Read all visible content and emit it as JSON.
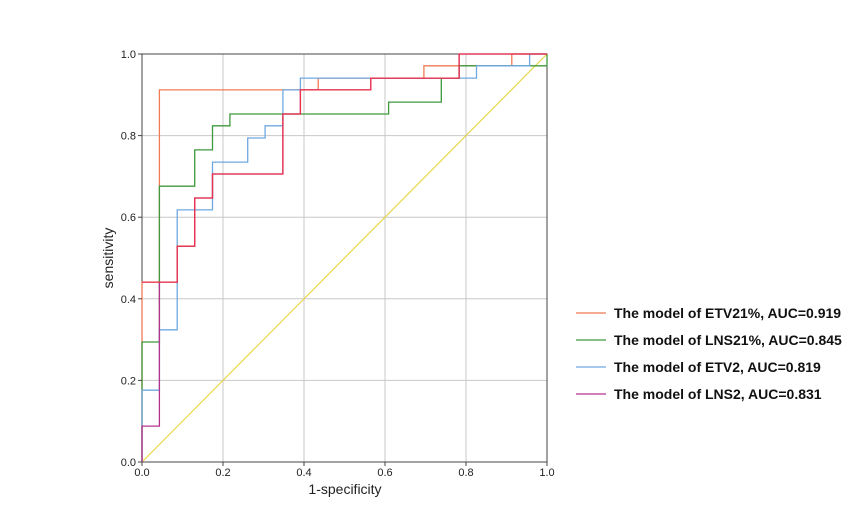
{
  "chart_data": {
    "type": "line",
    "xlabel": "1-specificity",
    "ylabel": "sensitivity",
    "xlim": [
      0,
      1
    ],
    "ylim": [
      0,
      1
    ],
    "x_ticks": [
      "0.0",
      "0.2",
      "0.4",
      "0.6",
      "0.8",
      "1.0"
    ],
    "y_ticks": [
      "0.0",
      "0.2",
      "0.4",
      "0.6",
      "0.8",
      "1.0"
    ],
    "grid": true,
    "legend_position": "right",
    "reference_line": {
      "x": [
        0,
        1
      ],
      "y": [
        0,
        1
      ],
      "color": "#e8d84a"
    },
    "series": [
      {
        "name": "The model of ETV21%, AUC=0.919",
        "color": "#f07b52",
        "x": [
          0,
          0,
          0.043,
          0.043,
          0.043,
          0.435,
          0.435,
          0.696,
          0.696,
          0.913,
          0.913,
          1
        ],
        "y": [
          0,
          0.441,
          0.441,
          0.676,
          0.912,
          0.912,
          0.941,
          0.941,
          0.971,
          0.971,
          1,
          1
        ]
      },
      {
        "name": "The model of LNS21%, AUC=0.845",
        "color": "#3e9a3e",
        "x": [
          0,
          0,
          0.043,
          0.043,
          0.13,
          0.13,
          0.174,
          0.174,
          0.217,
          0.217,
          0.348,
          0.348,
          0.609,
          0.609,
          0.739,
          0.739,
          0.783,
          0.783,
          1,
          1
        ],
        "y": [
          0,
          0.294,
          0.294,
          0.676,
          0.676,
          0.765,
          0.765,
          0.824,
          0.824,
          0.853,
          0.853,
          0.853,
          0.853,
          0.882,
          0.882,
          0.941,
          0.941,
          0.971,
          0.971,
          1
        ]
      },
      {
        "name": "The model of ETV2, AUC=0.819",
        "color": "#6fa8e0",
        "x": [
          0,
          0,
          0.043,
          0.043,
          0.087,
          0.087,
          0.174,
          0.174,
          0.261,
          0.261,
          0.304,
          0.304,
          0.348,
          0.348,
          0.391,
          0.391,
          0.435,
          0.435,
          0.826,
          0.826,
          0.957,
          0.957,
          1
        ],
        "y": [
          0,
          0.176,
          0.176,
          0.324,
          0.324,
          0.618,
          0.618,
          0.735,
          0.735,
          0.794,
          0.794,
          0.824,
          0.824,
          0.912,
          0.912,
          0.941,
          0.941,
          0.941,
          0.941,
          0.971,
          0.971,
          1,
          1
        ]
      },
      {
        "name": "The model of LNS2, AUC=0.831",
        "color": "#b5338f",
        "x": [
          0,
          0,
          0.043,
          0.043,
          0.087,
          0.087,
          0.13,
          0.13,
          0.174,
          0.174,
          0.348,
          0.348,
          0.391,
          0.391,
          0.565,
          0.565,
          0.783,
          0.783,
          1
        ],
        "y": [
          0,
          0.088,
          0.088,
          0.441,
          0.441,
          0.529,
          0.529,
          0.647,
          0.647,
          0.706,
          0.706,
          0.853,
          0.853,
          0.912,
          0.912,
          0.941,
          0.941,
          1,
          1
        ]
      },
      {
        "name": "",
        "color": "#e8334a",
        "x": [
          0,
          0.043,
          0.043,
          0.087,
          0.087,
          0.13,
          0.13,
          0.174,
          0.174,
          0.348,
          0.348,
          0.391,
          0.391,
          0.565,
          0.565,
          0.783,
          0.783,
          1
        ],
        "y": [
          0.441,
          0.441,
          0.441,
          0.441,
          0.529,
          0.529,
          0.647,
          0.647,
          0.706,
          0.706,
          0.853,
          0.853,
          0.912,
          0.912,
          0.941,
          0.941,
          1,
          1
        ]
      }
    ]
  }
}
